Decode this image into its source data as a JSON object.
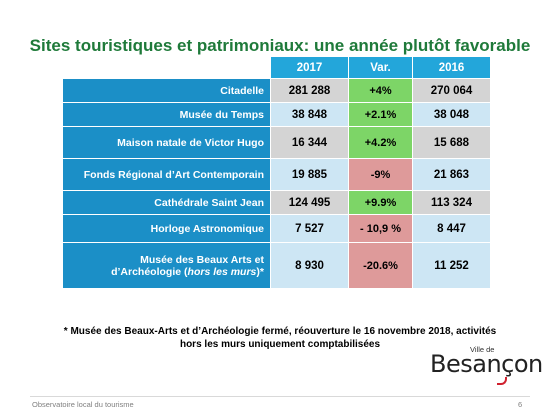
{
  "title": "Sites touristiques et patrimoniaux: une année plutôt favorable",
  "table": {
    "headers": [
      "2017",
      "Var.",
      "2016"
    ],
    "rows": [
      {
        "label": "Citadelle",
        "v2017": "281 288",
        "var": "+4%",
        "v2016": "270 064",
        "var_sign": "positive"
      },
      {
        "label": "Musée du Temps",
        "v2017": "38 848",
        "var": "+2.1%",
        "v2016": "38 048",
        "var_sign": "positive"
      },
      {
        "label": "Maison natale de Victor Hugo",
        "v2017": "16 344",
        "var": "+4.2%",
        "v2016": "15 688",
        "var_sign": "positive"
      },
      {
        "label": "Fonds Régional d’Art Contemporain",
        "v2017": "19 885",
        "var": "-9%",
        "v2016": "21 863",
        "var_sign": "negative"
      },
      {
        "label": "Cathédrale Saint Jean",
        "v2017": "124 495",
        "var": "+9.9%",
        "v2016": "113 324",
        "var_sign": "positive"
      },
      {
        "label": "Horloge Astronomique",
        "v2017": "7 527",
        "var": "- 10,9 %",
        "v2016": "8 447",
        "var_sign": "negative"
      },
      {
        "label_prefix": "Musée des Beaux Arts et d’Archéologie (",
        "label_italic": "hors les murs",
        "label_suffix": ")*",
        "v2017": "8 930",
        "var": "-20.6%",
        "v2016": "11 252",
        "var_sign": "negative"
      }
    ]
  },
  "colors": {
    "title_green": "#1F7A3A",
    "header_blue": "#23A6DA",
    "label_blue": "#1B8FC7",
    "positive_green": "#7DD567",
    "negative_red": "#DE9A9A"
  },
  "footnote": {
    "line1": "* Musée des Beaux-Arts et d’Archéologie fermé,  réouverture le 16 novembre 2018, activités",
    "line2": "hors les murs uniquement comptabilisées"
  },
  "logo": {
    "small": "Ville de",
    "big": "Besançon"
  },
  "footer": {
    "left": "Observatoire local du tourisme",
    "page": "6"
  }
}
